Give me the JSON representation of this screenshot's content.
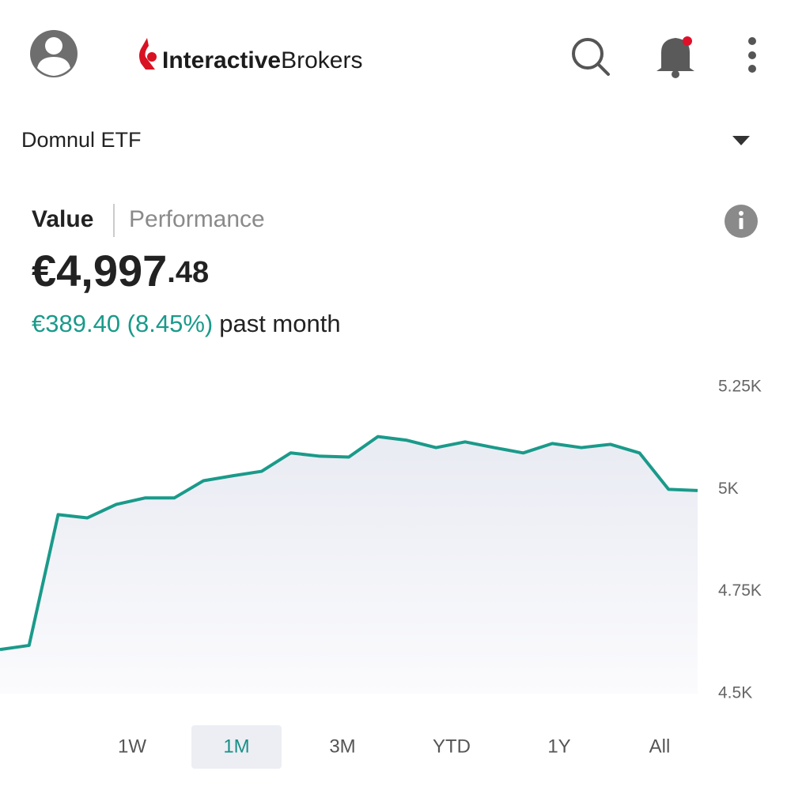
{
  "header": {
    "logo": {
      "bold": "Interactive",
      "regular": "Brokers"
    }
  },
  "account": "Domnul ETF",
  "tabs": [
    "Value",
    "Performance"
  ],
  "summary": {
    "value_main": "€4,997",
    "value_cents": ".48",
    "change": "€389.40 (8.45%)",
    "period": "past month"
  },
  "chart_data": {
    "type": "area",
    "categories": [
      null,
      null,
      null,
      null,
      null,
      null,
      null,
      null,
      null,
      null,
      null,
      null,
      null,
      null,
      null,
      null,
      null,
      null,
      null,
      null,
      null,
      null,
      null,
      null,
      null
    ],
    "values": [
      4608,
      4618,
      4938,
      4930,
      4963,
      4979,
      4979,
      5021,
      5033,
      5044,
      5089,
      5081,
      5079,
      5129,
      5120,
      5102,
      5116,
      5102,
      5089,
      5112,
      5102,
      5110,
      5089,
      5000,
      4997
    ],
    "color": "#1a9a8a",
    "ylim": [
      4500,
      5250
    ],
    "yticks": [
      {
        "value": 4500,
        "label": "4.5K"
      },
      {
        "value": 4750,
        "label": "4.75K"
      },
      {
        "value": 5000,
        "label": "5K"
      },
      {
        "value": 5250,
        "label": "5.25K"
      }
    ],
    "grid": false
  },
  "ranges": [
    "1W",
    "1M",
    "3M",
    "YTD",
    "1Y",
    "All"
  ],
  "selected_range": 1
}
